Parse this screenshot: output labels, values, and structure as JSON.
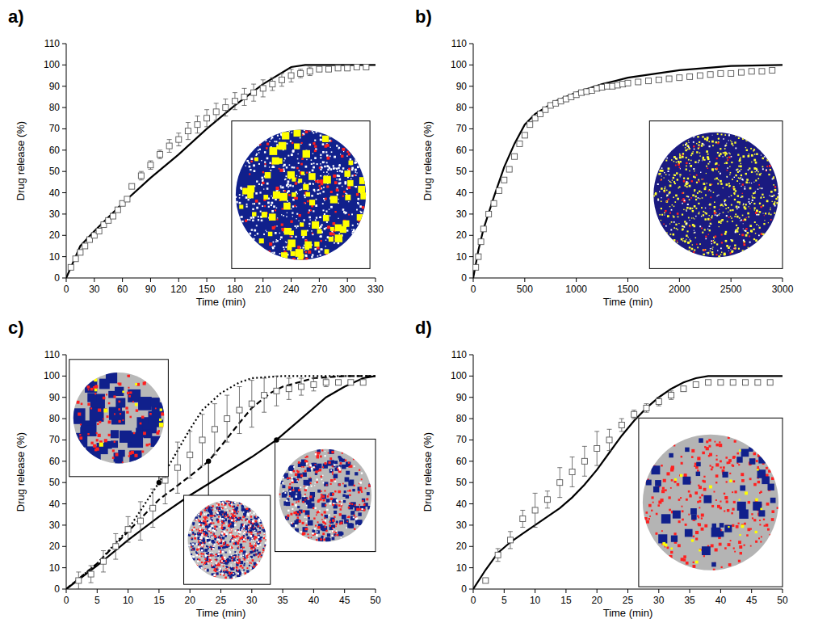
{
  "chart_data": [
    {
      "type": "line",
      "title": "a)",
      "x_label": "Time (min)",
      "y_label": "Drug release (%)",
      "xlim": [
        0,
        330
      ],
      "xticks": [
        0,
        30,
        60,
        90,
        120,
        150,
        180,
        210,
        240,
        270,
        300,
        330
      ],
      "ylim": [
        0,
        110
      ],
      "yticks": [
        0,
        10,
        20,
        30,
        40,
        50,
        60,
        70,
        80,
        90,
        100,
        110
      ],
      "series": [
        {
          "type": "line",
          "line_style": "solid",
          "color": "#000000",
          "x": [
            0,
            15,
            30,
            60,
            90,
            120,
            150,
            180,
            210,
            240,
            255,
            330
          ],
          "values": [
            0,
            15,
            22,
            35,
            47,
            58,
            70,
            81,
            91,
            99,
            100,
            100
          ]
        },
        {
          "type": "scatter",
          "marker": "square",
          "color": "#000000",
          "x": [
            5,
            10,
            15,
            20,
            25,
            30,
            35,
            40,
            45,
            50,
            55,
            60,
            65,
            70,
            80,
            90,
            100,
            110,
            120,
            130,
            140,
            150,
            160,
            170,
            180,
            190,
            200,
            210,
            220,
            230,
            240,
            250,
            260,
            270,
            280,
            290,
            300,
            310,
            320
          ],
          "values": [
            5,
            9,
            12,
            15,
            18,
            20,
            22,
            25,
            27,
            29,
            32,
            35,
            37,
            43,
            48,
            53,
            58,
            62,
            65,
            69,
            72,
            75,
            78,
            80,
            83,
            85,
            87,
            89,
            91,
            93,
            95,
            96,
            97,
            98,
            98,
            98.5,
            98.5,
            99,
            99
          ],
          "errors": [
            1,
            1,
            1,
            1,
            1,
            1,
            1,
            1,
            1,
            1,
            1,
            1,
            1,
            1,
            2,
            2,
            2,
            3,
            3,
            4,
            4,
            4,
            4,
            4,
            4,
            4,
            4,
            4,
            3,
            3,
            3,
            2,
            2,
            1,
            1,
            1,
            1,
            1,
            1
          ]
        }
      ]
    },
    {
      "type": "line",
      "title": "b)",
      "x_label": "Time (min)",
      "y_label": "Drug release (%)",
      "xlim": [
        0,
        3000
      ],
      "xticks": [
        0,
        500,
        1000,
        1500,
        2000,
        2500,
        3000
      ],
      "ylim": [
        0,
        110
      ],
      "yticks": [
        0,
        10,
        20,
        30,
        40,
        50,
        60,
        70,
        80,
        90,
        100,
        110
      ],
      "series": [
        {
          "type": "line",
          "line_style": "solid",
          "color": "#000000",
          "x": [
            0,
            50,
            100,
            200,
            300,
            400,
            500,
            600,
            800,
            1000,
            1250,
            1500,
            2000,
            2500,
            3000
          ],
          "values": [
            0,
            13,
            23,
            38,
            52,
            63,
            72,
            77,
            83,
            87,
            91,
            94,
            97.5,
            99.5,
            100
          ]
        },
        {
          "type": "scatter",
          "marker": "square",
          "color": "#000000",
          "x": [
            25,
            50,
            75,
            100,
            150,
            200,
            250,
            300,
            350,
            400,
            450,
            500,
            550,
            600,
            650,
            700,
            750,
            800,
            850,
            900,
            950,
            1000,
            1050,
            1100,
            1150,
            1200,
            1250,
            1300,
            1350,
            1400,
            1450,
            1500,
            1600,
            1700,
            1800,
            1900,
            2000,
            2100,
            2200,
            2300,
            2400,
            2500,
            2600,
            2700,
            2800,
            2900
          ],
          "values": [
            5,
            10,
            17,
            23,
            30,
            35,
            41,
            46,
            51,
            57,
            63,
            67,
            72,
            75,
            77,
            79,
            81,
            82,
            83,
            84,
            85,
            86,
            87,
            87.5,
            88,
            89,
            89.5,
            90,
            90,
            90.5,
            91,
            91.5,
            92,
            92.5,
            93,
            93.5,
            94,
            94.5,
            95,
            95.5,
            96,
            96,
            96.5,
            97,
            97,
            97.5
          ],
          "errors": [
            1,
            1,
            1,
            1,
            1,
            1,
            1,
            1,
            1,
            1,
            1,
            1,
            1,
            1,
            1,
            1,
            1,
            1,
            1,
            1,
            1,
            1,
            1,
            1,
            1,
            1,
            1,
            1,
            1,
            1,
            1,
            1,
            1,
            1,
            1,
            1,
            1,
            1,
            1,
            1,
            1,
            1,
            1,
            1,
            1,
            1
          ]
        }
      ]
    },
    {
      "type": "line",
      "title": "c)",
      "x_label": "Time (min)",
      "y_label": "Drug release (%)",
      "xlim": [
        0,
        50
      ],
      "xticks": [
        0,
        5,
        10,
        15,
        20,
        25,
        30,
        35,
        40,
        45,
        50
      ],
      "ylim": [
        0,
        110
      ],
      "yticks": [
        0,
        10,
        20,
        30,
        40,
        50,
        60,
        70,
        80,
        90,
        100,
        110
      ],
      "callouts": [
        {
          "x": 15,
          "y": 50
        },
        {
          "x": 23,
          "y": 60
        },
        {
          "x": 34,
          "y": 70
        }
      ],
      "series": [
        {
          "type": "line",
          "line_style": "dotted",
          "color": "#000000",
          "x": [
            0,
            5,
            10,
            15,
            18,
            20,
            22,
            25,
            28,
            30,
            35,
            50
          ],
          "values": [
            0,
            12,
            28,
            50,
            65,
            75,
            84,
            92,
            97,
            99,
            100,
            100
          ]
        },
        {
          "type": "line",
          "line_style": "dashed",
          "color": "#000000",
          "x": [
            0,
            5,
            10,
            15,
            20,
            23,
            25,
            28,
            30,
            33,
            35,
            40,
            45,
            50
          ],
          "values": [
            0,
            12,
            27,
            42,
            53,
            60,
            67,
            78,
            85,
            92,
            95,
            99,
            100,
            100
          ]
        },
        {
          "type": "line",
          "line_style": "solid",
          "color": "#000000",
          "x": [
            0,
            5,
            10,
            15,
            20,
            25,
            30,
            34,
            38,
            42,
            45,
            48,
            50
          ],
          "values": [
            0,
            11,
            23,
            34,
            44,
            53,
            62,
            70,
            80,
            90,
            95,
            99,
            100
          ]
        },
        {
          "type": "scatter",
          "marker": "square",
          "color": "#000000",
          "x": [
            2,
            4,
            6,
            8,
            10,
            12,
            14,
            16,
            18,
            20,
            22,
            24,
            26,
            28,
            30,
            32,
            34,
            36,
            38,
            40,
            42,
            44,
            46,
            48
          ],
          "values": [
            4,
            7,
            13,
            20,
            28,
            32,
            38,
            51,
            57,
            63,
            70,
            75,
            80,
            84,
            87,
            91,
            93,
            94,
            95,
            96,
            97,
            97,
            97,
            97
          ],
          "errors": [
            4,
            4,
            5,
            6,
            6,
            9,
            9,
            11,
            12,
            11,
            12,
            12,
            11,
            11,
            11,
            8,
            7,
            5,
            4,
            3,
            2,
            1,
            1,
            1
          ]
        }
      ]
    },
    {
      "type": "line",
      "title": "d)",
      "x_label": "Time (min)",
      "y_label": "Drug release (%)",
      "xlim": [
        0,
        50
      ],
      "xticks": [
        0,
        5,
        10,
        15,
        20,
        25,
        30,
        35,
        40,
        45,
        50
      ],
      "ylim": [
        0,
        110
      ],
      "yticks": [
        0,
        10,
        20,
        30,
        40,
        50,
        60,
        70,
        80,
        90,
        100,
        110
      ],
      "series": [
        {
          "type": "line",
          "line_style": "solid",
          "color": "#000000",
          "x": [
            0,
            2,
            4,
            6,
            8,
            10,
            12,
            14,
            16,
            18,
            20,
            22,
            24,
            26,
            28,
            30,
            32,
            34,
            36,
            38,
            50
          ],
          "values": [
            0,
            9,
            17,
            22,
            26,
            30,
            34,
            38,
            43,
            49,
            56,
            64,
            72,
            79,
            85,
            90,
            94,
            97,
            99,
            100,
            100
          ]
        },
        {
          "type": "scatter",
          "marker": "square",
          "color": "#000000",
          "x": [
            2,
            4,
            6,
            8,
            10,
            12,
            14,
            16,
            18,
            20,
            22,
            24,
            26,
            28,
            30,
            32,
            34,
            36,
            38,
            40,
            42,
            44,
            46,
            48
          ],
          "values": [
            4,
            16,
            23,
            33,
            37,
            42,
            50,
            55,
            60,
            66,
            70,
            77,
            82,
            85,
            88,
            91,
            94,
            96,
            97,
            97,
            97,
            97,
            97,
            97
          ],
          "errors": [
            0,
            3,
            4,
            4,
            8,
            4,
            7,
            7,
            7,
            8,
            5,
            3,
            2,
            2,
            2,
            2,
            1,
            1,
            1,
            1,
            1,
            1,
            1,
            1
          ]
        }
      ]
    }
  ]
}
